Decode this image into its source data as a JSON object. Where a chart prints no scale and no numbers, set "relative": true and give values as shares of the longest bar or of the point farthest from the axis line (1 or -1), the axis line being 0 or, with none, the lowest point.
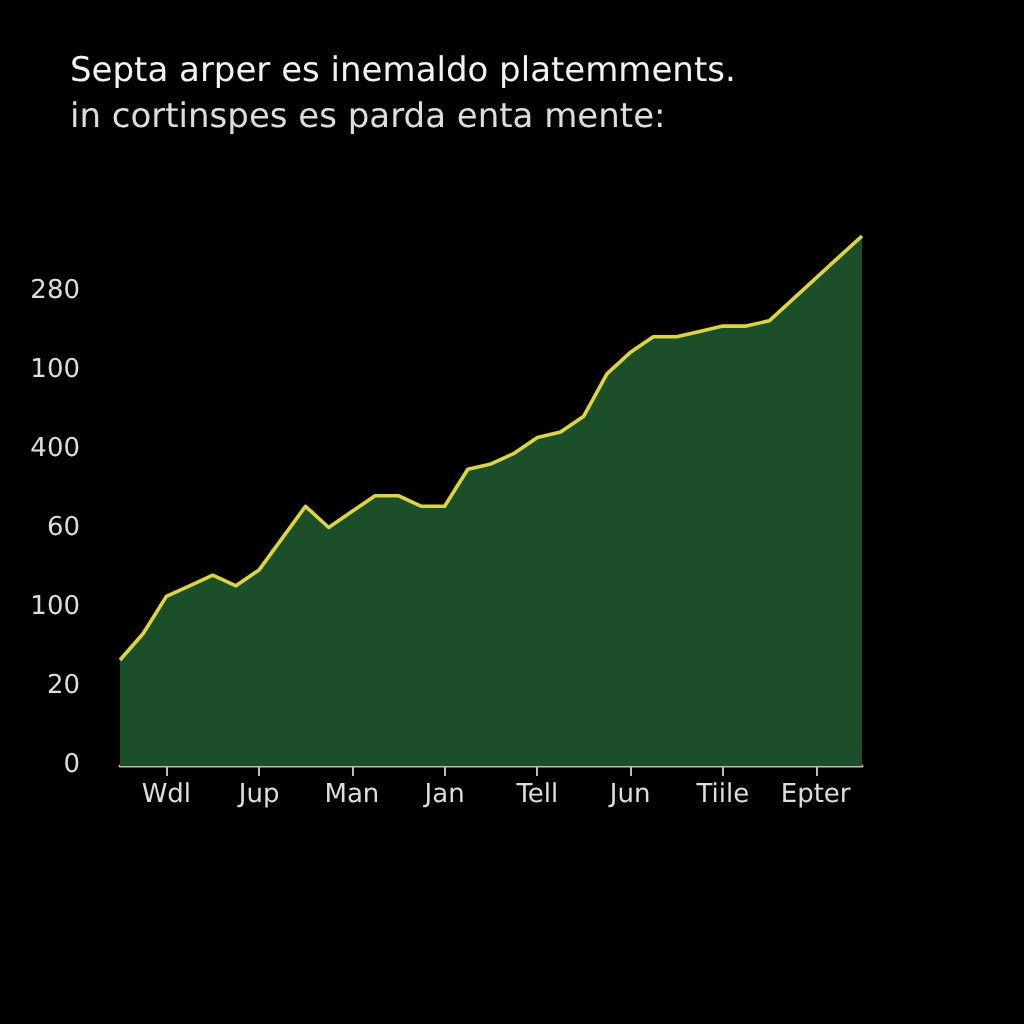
{
  "chart_data": {
    "type": "area",
    "title": "Septa arper es inemaldo platemments.",
    "subtitle": "in cortinspes es parda enta mente:",
    "relative": true,
    "categories": [
      null,
      null,
      "Wdl",
      null,
      null,
      null,
      "Jup",
      null,
      null,
      null,
      "Man",
      null,
      null,
      null,
      "Jan",
      null,
      null,
      null,
      "Tell",
      null,
      null,
      null,
      "Jun",
      null,
      null,
      null,
      "Tiile",
      null,
      null,
      null,
      "Epter",
      null,
      null
    ],
    "annotations": [
      "280",
      "100",
      "400",
      "60",
      "100",
      "20",
      "0"
    ],
    "marker": "none",
    "series": [
      {
        "color": "#1b4f2a",
        "values": [
          0.2,
          0.25,
          0.32,
          0.34,
          0.36,
          0.34,
          0.37,
          0.43,
          0.49,
          0.45,
          0.48,
          0.51,
          0.51,
          0.49,
          0.49,
          0.56,
          0.57,
          0.59,
          0.62,
          0.63,
          0.66,
          0.74,
          0.78,
          0.81,
          0.81,
          0.82,
          0.83,
          0.83,
          0.84,
          0.88,
          0.92,
          0.96,
          1
        ]
      },
      {
        "type": "line",
        "color": "#e0d43a",
        "values": [
          0.2,
          0.25,
          0.32,
          0.34,
          0.36,
          0.34,
          0.37,
          0.43,
          0.49,
          0.45,
          0.48,
          0.51,
          0.51,
          0.49,
          0.49,
          0.56,
          0.57,
          0.59,
          0.62,
          0.63,
          0.66,
          0.74,
          0.78,
          0.81,
          0.81,
          0.82,
          0.83,
          0.83,
          0.84,
          0.88,
          0.92,
          0.96,
          1
        ]
      }
    ]
  }
}
